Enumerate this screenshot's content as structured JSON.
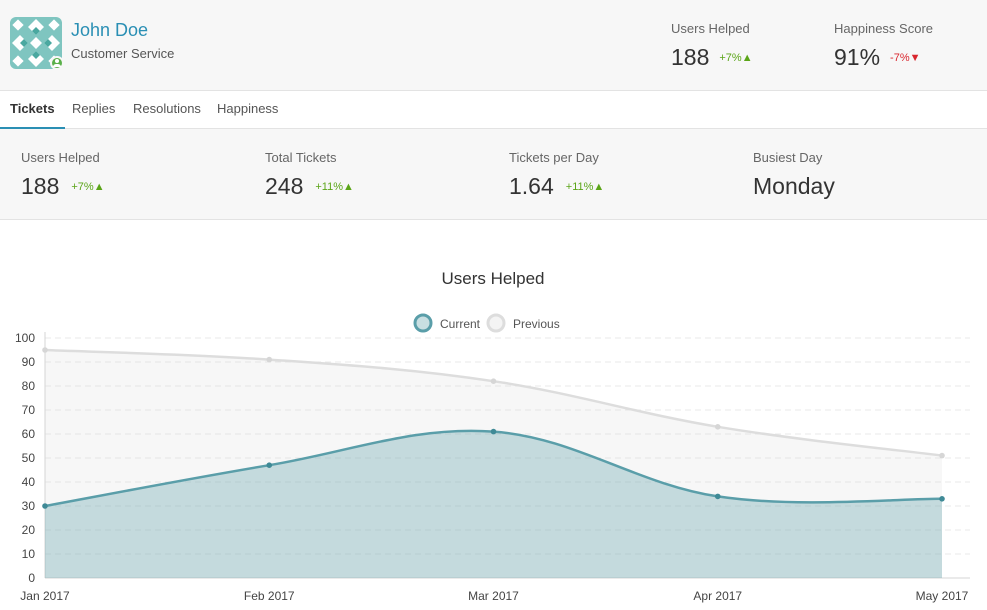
{
  "colors": {
    "accent": "#2a8fb4",
    "up": "#5ba518",
    "down": "#d9262e",
    "current": "#5a9ea9",
    "previous": "#dddddd"
  },
  "profile": {
    "name": "John Doe",
    "role": "Customer Service",
    "avatar_icon": "geometric-pattern-avatar",
    "status_icon": "online-user-icon"
  },
  "header_stats": [
    {
      "label": "Users Helped",
      "value": "188",
      "change": "+7%▲",
      "direction": "up"
    },
    {
      "label": "Happiness Score",
      "value": "91%",
      "change": "-7%▼",
      "direction": "down"
    }
  ],
  "tabs": [
    {
      "label": "Tickets",
      "active": true
    },
    {
      "label": "Replies",
      "active": false
    },
    {
      "label": "Resolutions",
      "active": false
    },
    {
      "label": "Happiness",
      "active": false
    }
  ],
  "stats": [
    {
      "label": "Users Helped",
      "value": "188",
      "change": "+7%▲"
    },
    {
      "label": "Total Tickets",
      "value": "248",
      "change": "+11%▲"
    },
    {
      "label": "Tickets per Day",
      "value": "1.64",
      "change": "+11%▲"
    },
    {
      "label": "Busiest Day",
      "value": "Monday",
      "change": ""
    }
  ],
  "chart_data": {
    "type": "area",
    "title": "Users Helped",
    "categories": [
      "Jan 2017",
      "Feb 2017",
      "Mar 2017",
      "Apr 2017",
      "May 2017"
    ],
    "series": [
      {
        "name": "Current",
        "values": [
          30,
          47,
          61,
          34,
          33
        ]
      },
      {
        "name": "Previous",
        "values": [
          95,
          91,
          82,
          63,
          51
        ]
      }
    ],
    "ylim": [
      0,
      100
    ],
    "yticks": [
      "0",
      "10",
      "20",
      "30",
      "40",
      "50",
      "60",
      "70",
      "80",
      "90",
      "100"
    ],
    "grid": true,
    "legend": "top-center"
  }
}
